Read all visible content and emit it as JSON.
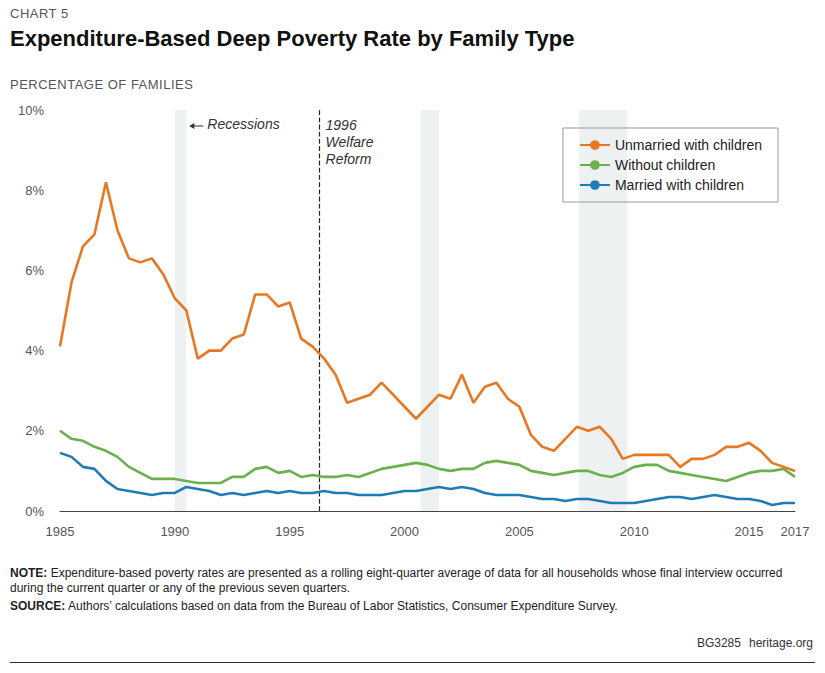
{
  "chart_data": {
    "type": "line",
    "chart_number": "CHART 5",
    "title": "Expenditure-Based Deep Poverty Rate by Family Type",
    "subtitle": "PERCENTAGE OF FAMILIES",
    "x": [
      1985.0,
      1985.5,
      1986.0,
      1986.5,
      1987.0,
      1987.5,
      1988.0,
      1988.5,
      1989.0,
      1989.5,
      1990.0,
      1990.5,
      1991.0,
      1991.5,
      1992.0,
      1992.5,
      1993.0,
      1993.5,
      1994.0,
      1994.5,
      1995.0,
      1995.5,
      1996.0,
      1996.5,
      1997.0,
      1997.5,
      1998.0,
      1998.5,
      1999.0,
      1999.5,
      2000.0,
      2000.5,
      2001.0,
      2001.5,
      2002.0,
      2002.5,
      2003.0,
      2003.5,
      2004.0,
      2004.5,
      2005.0,
      2005.5,
      2006.0,
      2006.5,
      2007.0,
      2007.5,
      2008.0,
      2008.5,
      2009.0,
      2009.5,
      2010.0,
      2010.5,
      2011.0,
      2011.5,
      2012.0,
      2012.5,
      2013.0,
      2013.5,
      2014.0,
      2014.5,
      2015.0,
      2015.5,
      2016.0,
      2016.5,
      2017.0
    ],
    "series": [
      {
        "name": "Unmarried with children",
        "color": "#e87722",
        "values": [
          4.1,
          5.7,
          6.6,
          6.9,
          8.2,
          7.0,
          6.3,
          6.2,
          6.3,
          5.9,
          5.3,
          5.0,
          3.8,
          4.0,
          4.0,
          4.3,
          4.4,
          5.4,
          5.4,
          5.1,
          5.2,
          4.3,
          4.1,
          3.8,
          3.4,
          2.7,
          2.8,
          2.9,
          3.2,
          2.9,
          2.6,
          2.3,
          2.6,
          2.9,
          2.8,
          3.4,
          2.7,
          3.1,
          3.2,
          2.8,
          2.6,
          1.9,
          1.6,
          1.5,
          1.8,
          2.1,
          2.0,
          2.1,
          1.8,
          1.3,
          1.4,
          1.4,
          1.4,
          1.4,
          1.1,
          1.3,
          1.3,
          1.4,
          1.6,
          1.6,
          1.7,
          1.5,
          1.2,
          1.1,
          1.0
        ]
      },
      {
        "name": "Without children",
        "color": "#6ab04c",
        "values": [
          2.0,
          1.8,
          1.75,
          1.6,
          1.5,
          1.35,
          1.1,
          0.95,
          0.8,
          0.8,
          0.8,
          0.75,
          0.7,
          0.7,
          0.7,
          0.85,
          0.85,
          1.05,
          1.1,
          0.95,
          1.0,
          0.85,
          0.9,
          0.85,
          0.85,
          0.9,
          0.85,
          0.95,
          1.05,
          1.1,
          1.15,
          1.2,
          1.15,
          1.05,
          1.0,
          1.05,
          1.05,
          1.2,
          1.25,
          1.2,
          1.15,
          1.0,
          0.95,
          0.9,
          0.95,
          1.0,
          1.0,
          0.9,
          0.85,
          0.95,
          1.1,
          1.15,
          1.15,
          1.0,
          0.95,
          0.9,
          0.85,
          0.8,
          0.75,
          0.85,
          0.95,
          1.0,
          1.0,
          1.05,
          0.85
        ]
      },
      {
        "name": "Married with children",
        "color": "#1f7bb6",
        "values": [
          1.45,
          1.35,
          1.1,
          1.05,
          0.75,
          0.55,
          0.5,
          0.45,
          0.4,
          0.45,
          0.45,
          0.6,
          0.55,
          0.5,
          0.4,
          0.45,
          0.4,
          0.45,
          0.5,
          0.45,
          0.5,
          0.45,
          0.45,
          0.5,
          0.45,
          0.45,
          0.4,
          0.4,
          0.4,
          0.45,
          0.5,
          0.5,
          0.55,
          0.6,
          0.55,
          0.6,
          0.55,
          0.45,
          0.4,
          0.4,
          0.4,
          0.35,
          0.3,
          0.3,
          0.25,
          0.3,
          0.3,
          0.25,
          0.2,
          0.2,
          0.2,
          0.25,
          0.3,
          0.35,
          0.35,
          0.3,
          0.35,
          0.4,
          0.35,
          0.3,
          0.3,
          0.25,
          0.15,
          0.2,
          0.2
        ]
      }
    ],
    "xlim": [
      1985,
      2017
    ],
    "xticks": [
      1985,
      1990,
      1995,
      2000,
      2005,
      2010,
      2015,
      2017
    ],
    "ylim": [
      0,
      10
    ],
    "yticks": [
      {
        "value": 0,
        "label": "0%"
      },
      {
        "value": 2,
        "label": "2%"
      },
      {
        "value": 4,
        "label": "4%"
      },
      {
        "value": 6,
        "label": "6%"
      },
      {
        "value": 8,
        "label": "8%"
      },
      {
        "value": 10,
        "label": "10%"
      }
    ],
    "grid": false,
    "legend": "top-right",
    "recessions": {
      "label": "Recessions",
      "periods": [
        [
          1990.0,
          1990.5
        ],
        [
          2000.7,
          2001.5
        ],
        [
          2007.6,
          2009.7
        ]
      ]
    },
    "annotations": [
      {
        "text": "1996\nWelfare\nReform",
        "x": 1996.3
      }
    ],
    "notes": [
      {
        "label": "NOTE:",
        "text": "Expenditure-based poverty rates are presented as a rolling eight-quarter average of data for all households whose final interview occurred during the current quarter or any of the previous seven quarters."
      },
      {
        "label": "SOURCE:",
        "text": "Authors’ calculations based on data from the Bureau of Labor Statistics, Consumer Expenditure Survey."
      }
    ],
    "footer": [
      "BG3285",
      "heritage.org"
    ]
  }
}
